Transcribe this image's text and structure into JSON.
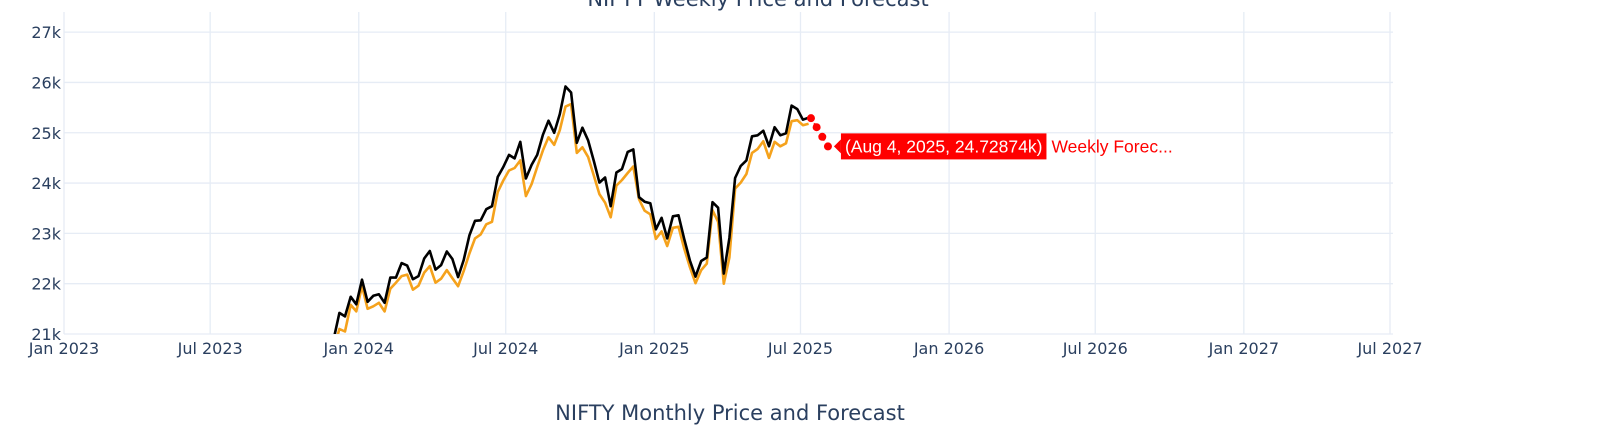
{
  "chart_data": [
    {
      "type": "line",
      "title": "NIFTY Weekly Price and Forecast",
      "xlabel": "",
      "ylabel": "",
      "x_range": [
        "2023-01-01",
        "2027-07-01"
      ],
      "ylim": [
        21000,
        27400
      ],
      "x_ticks": [
        "2023-01-01",
        "2023-07-01",
        "2024-01-01",
        "2024-07-01",
        "2025-01-01",
        "2025-07-01",
        "2026-01-01",
        "2026-07-01",
        "2027-01-01",
        "2027-07-01"
      ],
      "x_tick_labels": [
        "Jan 2023",
        "Jul 2023",
        "Jan 2024",
        "Jul 2024",
        "Jan 2025",
        "Jul 2025",
        "Jan 2026",
        "Jul 2026",
        "Jan 2027",
        "Jul 2027"
      ],
      "y_ticks": [
        21000,
        22000,
        23000,
        24000,
        25000,
        26000,
        27000
      ],
      "y_tick_labels": [
        "21k",
        "22k",
        "23k",
        "24k",
        "25k",
        "26k",
        "27k"
      ],
      "grid": true,
      "series": [
        {
          "color": "#000000",
          "x": [
            "2023-12-01",
            "2023-12-08",
            "2023-12-15",
            "2023-12-22",
            "2023-12-29",
            "2024-01-05",
            "2024-01-12",
            "2024-01-19",
            "2024-01-26",
            "2024-02-02",
            "2024-02-09",
            "2024-02-16",
            "2024-02-23",
            "2024-03-01",
            "2024-03-08",
            "2024-03-15",
            "2024-03-22",
            "2024-03-29",
            "2024-04-05",
            "2024-04-12",
            "2024-04-19",
            "2024-04-26",
            "2024-05-03",
            "2024-05-10",
            "2024-05-17",
            "2024-05-24",
            "2024-05-31",
            "2024-06-07",
            "2024-06-14",
            "2024-06-21",
            "2024-06-28",
            "2024-07-05",
            "2024-07-12",
            "2024-07-19",
            "2024-07-26",
            "2024-08-02",
            "2024-08-09",
            "2024-08-16",
            "2024-08-23",
            "2024-08-30",
            "2024-09-06",
            "2024-09-13",
            "2024-09-20",
            "2024-09-27",
            "2024-10-04",
            "2024-10-11",
            "2024-10-18",
            "2024-10-25",
            "2024-11-01",
            "2024-11-08",
            "2024-11-15",
            "2024-11-22",
            "2024-11-29",
            "2024-12-06",
            "2024-12-13",
            "2024-12-20",
            "2024-12-27",
            "2025-01-03",
            "2025-01-10",
            "2025-01-17",
            "2025-01-24",
            "2025-01-31",
            "2025-02-07",
            "2025-02-14",
            "2025-02-21",
            "2025-02-28",
            "2025-03-07",
            "2025-03-14",
            "2025-03-21",
            "2025-03-28",
            "2025-04-04",
            "2025-04-11",
            "2025-04-18",
            "2025-04-25",
            "2025-05-02",
            "2025-05-09",
            "2025-05-16",
            "2025-05-23",
            "2025-05-30",
            "2025-06-06",
            "2025-06-13",
            "2025-06-20",
            "2025-06-27",
            "2025-07-04",
            "2025-07-11"
          ],
          "y": [
            20900,
            21420,
            21350,
            21740,
            21590,
            22080,
            21640,
            21760,
            21790,
            21620,
            22120,
            22120,
            22410,
            22360,
            22090,
            22150,
            22500,
            22650,
            22280,
            22370,
            22640,
            22490,
            22130,
            22470,
            22960,
            23250,
            23260,
            23480,
            23540,
            24120,
            24320,
            24560,
            24490,
            24820,
            24090,
            24360,
            24560,
            24960,
            25240,
            25000,
            25370,
            25920,
            25800,
            24800,
            25100,
            24850,
            24440,
            24010,
            24110,
            23540,
            24210,
            24280,
            24620,
            24670,
            23720,
            23630,
            23600,
            23080,
            23310,
            22900,
            23340,
            23360,
            22890,
            22460,
            22140,
            22450,
            22520,
            23620,
            23510,
            22200,
            22910,
            24100,
            24340,
            24450,
            24930,
            24950,
            25040,
            24730,
            25110,
            24950,
            24990,
            25540,
            25470,
            25260,
            25300
          ]
        },
        {
          "color": "#f5a21c",
          "x": [
            "2023-12-01",
            "2023-12-08",
            "2023-12-15",
            "2023-12-22",
            "2023-12-29",
            "2024-01-05",
            "2024-01-12",
            "2024-01-19",
            "2024-01-26",
            "2024-02-02",
            "2024-02-09",
            "2024-02-16",
            "2024-02-23",
            "2024-03-01",
            "2024-03-08",
            "2024-03-15",
            "2024-03-22",
            "2024-03-29",
            "2024-04-05",
            "2024-04-12",
            "2024-04-19",
            "2024-04-26",
            "2024-05-03",
            "2024-05-10",
            "2024-05-17",
            "2024-05-24",
            "2024-05-31",
            "2024-06-07",
            "2024-06-14",
            "2024-06-21",
            "2024-06-28",
            "2024-07-05",
            "2024-07-12",
            "2024-07-19",
            "2024-07-26",
            "2024-08-02",
            "2024-08-09",
            "2024-08-16",
            "2024-08-23",
            "2024-08-30",
            "2024-09-06",
            "2024-09-13",
            "2024-09-20",
            "2024-09-27",
            "2024-10-04",
            "2024-10-11",
            "2024-10-18",
            "2024-10-25",
            "2024-11-01",
            "2024-11-08",
            "2024-11-15",
            "2024-11-22",
            "2024-11-29",
            "2024-12-06",
            "2024-12-13",
            "2024-12-20",
            "2024-12-27",
            "2025-01-03",
            "2025-01-10",
            "2025-01-17",
            "2025-01-24",
            "2025-01-31",
            "2025-02-07",
            "2025-02-14",
            "2025-02-21",
            "2025-02-28",
            "2025-03-07",
            "2025-03-14",
            "2025-03-21",
            "2025-03-28",
            "2025-04-04",
            "2025-04-11",
            "2025-04-18",
            "2025-04-25",
            "2025-05-02",
            "2025-05-09",
            "2025-05-16",
            "2025-05-23",
            "2025-05-30",
            "2025-06-06",
            "2025-06-13",
            "2025-06-20",
            "2025-06-27",
            "2025-07-04",
            "2025-07-11"
          ],
          "y": [
            20700,
            21100,
            21050,
            21580,
            21450,
            21950,
            21500,
            21550,
            21620,
            21450,
            21900,
            22020,
            22150,
            22180,
            21880,
            21960,
            22220,
            22350,
            22020,
            22100,
            22270,
            22110,
            21950,
            22250,
            22600,
            22900,
            22980,
            23180,
            23230,
            23820,
            24050,
            24250,
            24300,
            24450,
            23740,
            23980,
            24320,
            24650,
            24910,
            24760,
            25050,
            25520,
            25570,
            24600,
            24710,
            24520,
            24150,
            23780,
            23610,
            23320,
            23950,
            24060,
            24200,
            24330,
            23680,
            23450,
            23380,
            22890,
            23040,
            22750,
            23110,
            23130,
            22700,
            22330,
            22010,
            22270,
            22400,
            23460,
            23230,
            22000,
            22520,
            23890,
            24010,
            24180,
            24600,
            24680,
            24830,
            24500,
            24820,
            24730,
            24790,
            25230,
            25250,
            25150,
            25180
          ]
        },
        {
          "color": "#ff0000",
          "x": [
            "2025-07-14",
            "2025-07-21",
            "2025-07-28",
            "2025-08-04"
          ],
          "y": [
            25290,
            25110,
            24920,
            24728.74
          ]
        }
      ],
      "hover": {
        "label": "(Aug 4, 2025, 24.72874k)",
        "name": "Weekly Forec...",
        "x": "2025-08-04",
        "y": 24728.74,
        "bg_color": "#ff0000",
        "text_color": "#ffffff"
      }
    },
    {
      "type": "line",
      "title": "NIFTY Monthly Price and Forecast"
    }
  ]
}
